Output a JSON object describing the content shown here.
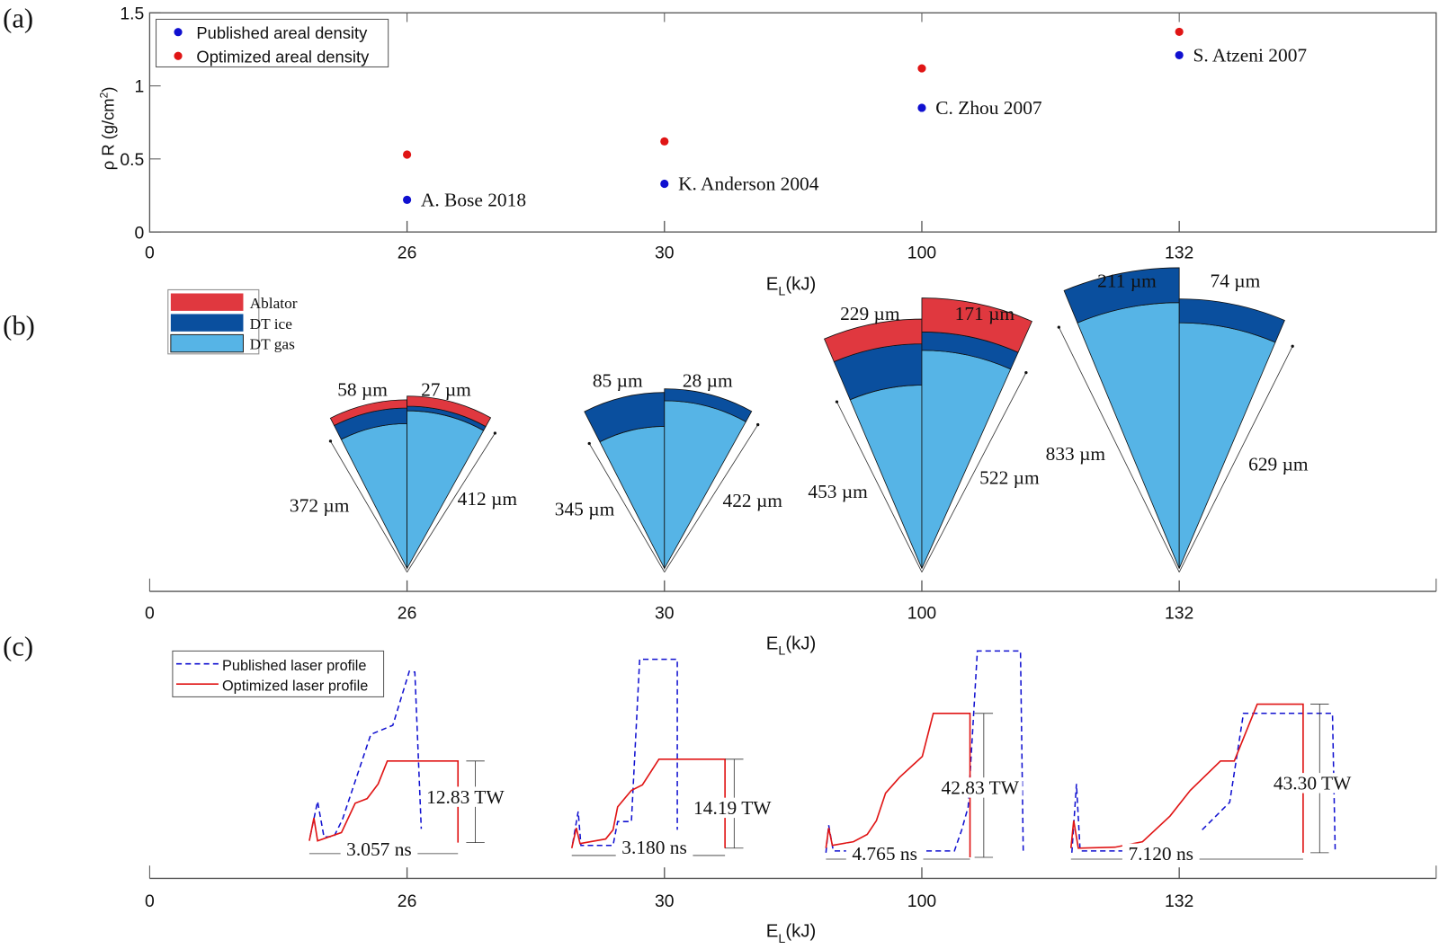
{
  "panel_labels": [
    "(a)",
    "(b)",
    "(c)"
  ],
  "colors": {
    "published": "#1010d0",
    "optimized": "#e01515",
    "ablator": "#e0383f",
    "dt_ice": "#0a4f9e",
    "dt_gas": "#56b4e6",
    "axis": "#555555"
  },
  "chart_data": [
    {
      "type": "scatter",
      "panel": "(a)",
      "categories": [
        "0",
        "26",
        "30",
        "100",
        "132"
      ],
      "xlabel": "E",
      "xlabel_sub": "L",
      "xlabel_unit": "(kJ)",
      "ylabel": "ρ R (g/cm",
      "ylabel_sup": "2",
      "ylabel_close": ")",
      "ylim": [
        0,
        1.5
      ],
      "yticks": [
        "0",
        "0.5",
        "1",
        "1.5"
      ],
      "legend_position": "top-left",
      "series": [
        {
          "name": "Published areal density",
          "x": [
            "26",
            "30",
            "100",
            "132"
          ],
          "values": [
            0.22,
            0.33,
            0.85,
            1.21
          ]
        },
        {
          "name": "Optimized areal density",
          "x": [
            "26",
            "30",
            "100",
            "132"
          ],
          "values": [
            0.53,
            0.62,
            1.12,
            1.37
          ]
        }
      ],
      "annotations": [
        "A. Bose 2018",
        "K. Anderson 2004",
        "C. Zhou 2007",
        "S. Atzeni 2007"
      ]
    },
    {
      "type": "diagram",
      "panel": "(b)",
      "categories": [
        "0",
        "26",
        "30",
        "100",
        "132"
      ],
      "xlabel": "E",
      "xlabel_sub": "L",
      "xlabel_unit": "(kJ)",
      "legend": [
        "Ablator",
        "DT ice",
        "DT gas"
      ],
      "targets": [
        {
          "x": "26",
          "published": {
            "shell": "58 µm",
            "gas": "372 µm",
            "ablator": true
          },
          "optimized": {
            "shell": "27 µm",
            "gas": "412 µm",
            "ablator": true
          }
        },
        {
          "x": "30",
          "published": {
            "shell": "85 µm",
            "gas": "345 µm",
            "ablator": false
          },
          "optimized": {
            "shell": "28 µm",
            "gas": "422 µm",
            "ablator": false
          }
        },
        {
          "x": "100",
          "published": {
            "shell": "229 µm",
            "gas": "453 µm",
            "ablator": true
          },
          "optimized": {
            "shell": "171 µm",
            "gas": "522 µm",
            "ablator": true
          }
        },
        {
          "x": "132",
          "published": {
            "shell": "211 µm",
            "gas": "833 µm",
            "ablator": false
          },
          "optimized": {
            "shell": "74 µm",
            "gas": "629 µm",
            "ablator": false
          }
        }
      ]
    },
    {
      "type": "line",
      "panel": "(c)",
      "categories": [
        "0",
        "26",
        "30",
        "100",
        "132"
      ],
      "xlabel": "E",
      "xlabel_sub": "L",
      "xlabel_unit": "(kJ)",
      "legend": [
        "Published laser profile",
        "Optimized laser profile"
      ],
      "legend_position": "top-left",
      "pulses": [
        {
          "x": "26",
          "peak_power": "12.83 TW",
          "duration": "3.057 ns"
        },
        {
          "x": "30",
          "peak_power": "14.19 TW",
          "duration": "3.180 ns"
        },
        {
          "x": "100",
          "peak_power": "42.83 TW",
          "duration": "4.765 ns"
        },
        {
          "x": "132",
          "peak_power": "43.30 TW",
          "duration": "7.120 ns"
        }
      ]
    }
  ]
}
